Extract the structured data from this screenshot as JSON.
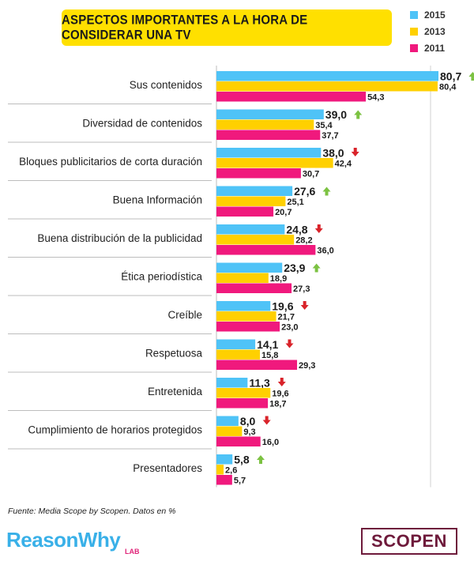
{
  "title": "ASPECTOS IMPORTANTES A LA HORA DE CONSIDERAR UNA TV",
  "source": "Fuente: Media Scope by Scopen. Datos en %",
  "brand_left": "ReasonWhy",
  "brand_left_sub": "LAB",
  "brand_right": "SCOPEN",
  "colors": {
    "2015": "#4fc3f7",
    "2013": "#ffd000",
    "2011": "#f0197d",
    "up": "#7cc242",
    "down": "#d9232a"
  },
  "chart_data": {
    "type": "bar",
    "orientation": "horizontal",
    "title": "ASPECTOS IMPORTANTES A LA HORA DE CONSIDERAR UNA TV",
    "categories": [
      "Sus contenidos",
      "Diversidad de contenidos",
      "Bloques publicitarios de corta duración",
      "Buena Información",
      "Buena distribución de la publicidad",
      "Ética periodística",
      "Creíble",
      "Respetuosa",
      "Entretenida",
      "Cumplimiento de horarios protegidos",
      "Presentadores"
    ],
    "series": [
      {
        "name": "2015",
        "values": [
          80.7,
          39.0,
          38.0,
          27.6,
          24.8,
          23.9,
          19.6,
          14.1,
          11.3,
          8.0,
          5.8
        ],
        "labels": [
          "80,7",
          "39,0",
          "38,0",
          "27,6",
          "24,8",
          "23,9",
          "19,6",
          "14,1",
          "11,3",
          "8,0",
          "5,8"
        ]
      },
      {
        "name": "2013",
        "values": [
          80.4,
          35.4,
          42.4,
          25.1,
          28.2,
          18.9,
          21.7,
          15.8,
          19.6,
          9.3,
          2.6
        ],
        "labels": [
          "80,4",
          "35,4",
          "42,4",
          "25,1",
          "28,2",
          "18,9",
          "21,7",
          "15,8",
          "19,6",
          "9,3",
          "2,6"
        ]
      },
      {
        "name": "2011",
        "values": [
          54.3,
          37.7,
          30.7,
          20.7,
          36.0,
          27.3,
          23.0,
          29.3,
          18.7,
          16.0,
          5.7
        ],
        "labels": [
          "54,3",
          "37,7",
          "30,7",
          "20,7",
          "36,0",
          "27,3",
          "23,0",
          "29,3",
          "18,7",
          "16,0",
          "5,7"
        ]
      }
    ],
    "trend_2015": [
      "up",
      "up",
      "down",
      "up",
      "down",
      "up",
      "down",
      "down",
      "down",
      "down",
      "up"
    ],
    "xlim": [
      0,
      80.7
    ],
    "legend_position": "top-right"
  }
}
